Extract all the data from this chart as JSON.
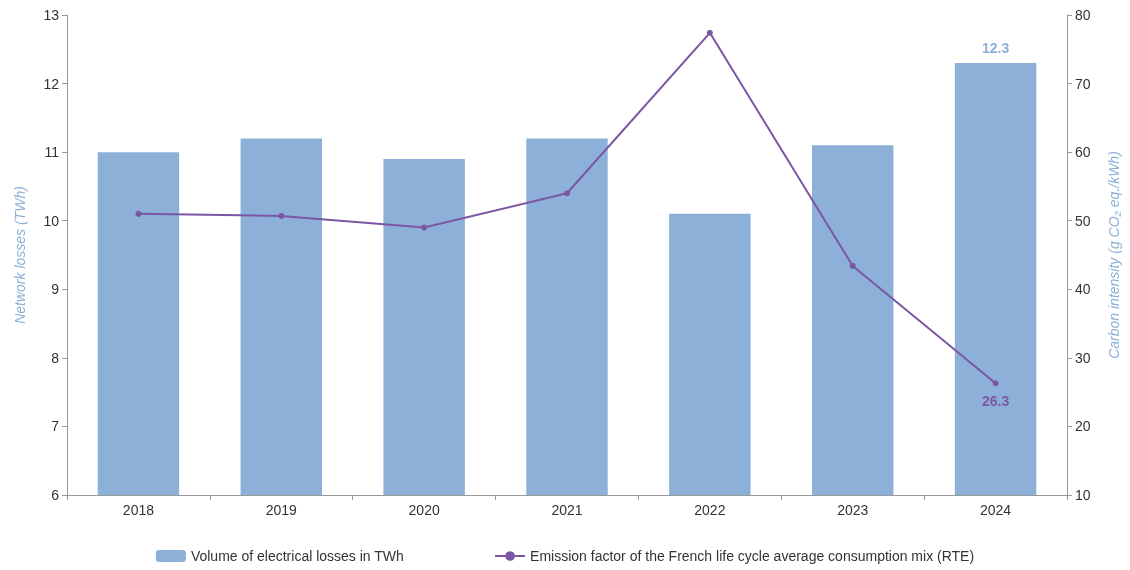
{
  "chart_data": {
    "type": "bar",
    "ylabel": "Network losses (TWh)",
    "y2label": "Carbon intensity (g CO₂ eq./kWh)",
    "categories": [
      "2018",
      "2019",
      "2020",
      "2021",
      "2022",
      "2023",
      "2024"
    ],
    "series": [
      {
        "name": "Volume of electrical losses in TWh",
        "color": "#8db0d8",
        "values": [
          11.0,
          11.2,
          10.9,
          11.2,
          10.1,
          11.1,
          12.3
        ],
        "value_labels": [
          null,
          null,
          null,
          null,
          null,
          null,
          "12.3"
        ]
      },
      {
        "name": "Emission factor of the French life cycle average consumption mix (RTE)",
        "type": "line",
        "axis": "y2",
        "color": "#7b57a3",
        "values": [
          51,
          50.7,
          49,
          54,
          77.4,
          43.4,
          26.3
        ],
        "value_labels": [
          null,
          null,
          null,
          null,
          null,
          null,
          "26.3"
        ]
      }
    ],
    "ylim": [
      6,
      13
    ],
    "yticks": [
      6,
      7,
      8,
      9,
      10,
      11,
      12,
      13
    ],
    "y2lim": [
      10,
      80
    ],
    "y2ticks": [
      10,
      20,
      30,
      40,
      50,
      60,
      70,
      80
    ],
    "grid": false,
    "legend": "bottom",
    "marker": "circle",
    "line_style": "solid"
  }
}
